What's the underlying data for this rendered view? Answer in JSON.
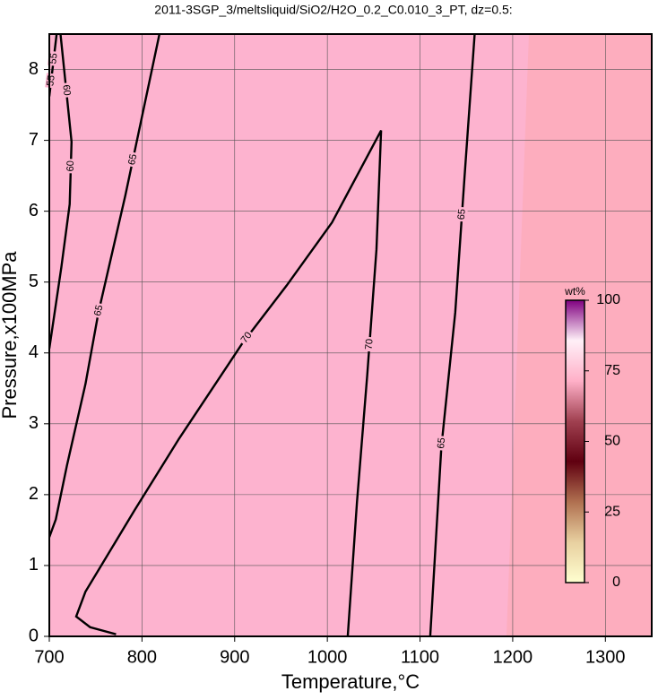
{
  "chart_data": {
    "type": "contour",
    "title": "2011-3SGP_3/meltsliquid/SiO2/H2O_0.2_C0.010_3_PT, dz=0.5:",
    "x_label": "Temperature,°C",
    "y_label": "Pressure,x100MPa",
    "xlim": [
      700,
      1350
    ],
    "ylim": [
      0,
      8.5
    ],
    "xticks": [
      700,
      800,
      900,
      1000,
      1100,
      1200,
      1300
    ],
    "yticks": [
      0,
      1,
      2,
      3,
      4,
      5,
      6,
      7,
      8
    ],
    "grid": true,
    "contours": [
      {
        "level": 70,
        "x": [
          772,
          744,
          729,
          739,
          792,
          840,
          908,
          956,
          1005,
          1058,
          1053,
          1043,
          1032,
          1022
        ],
        "y": [
          0.03,
          0.13,
          0.28,
          0.63,
          1.78,
          2.79,
          4.13,
          4.95,
          5.84,
          7.14,
          5.46,
          3.68,
          1.9,
          0
        ]
      },
      {
        "level": 65,
        "x": [
          1159,
          1148,
          1138,
          1123,
          1111
        ],
        "y": [
          8.51,
          6.48,
          4.57,
          2.67,
          0
        ]
      },
      {
        "level": 65,
        "x": [
          819,
          782,
          753,
          739,
          719,
          707,
          700
        ],
        "y": [
          8.51,
          6.22,
          4.57,
          3.56,
          2.41,
          1.65,
          1.4
        ]
      },
      {
        "level": 60,
        "x": [
          712,
          724,
          722,
          713,
          700
        ],
        "y": [
          8.51,
          6.98,
          6.1,
          5.21,
          4.06
        ]
      },
      {
        "level": 55,
        "x": [
          708,
          700
        ],
        "y": [
          8.51,
          7.62
        ]
      }
    ],
    "colorbar": {
      "label": "wt%",
      "lim": [
        0,
        100
      ],
      "ticks": [
        0,
        25,
        50,
        75,
        100
      ],
      "colors": [
        "#ffffd0",
        "#e8d0a0",
        "#b07050",
        "#600010",
        "#a04050",
        "#ffb0c8",
        "#fff0f8",
        "#800080"
      ]
    }
  }
}
